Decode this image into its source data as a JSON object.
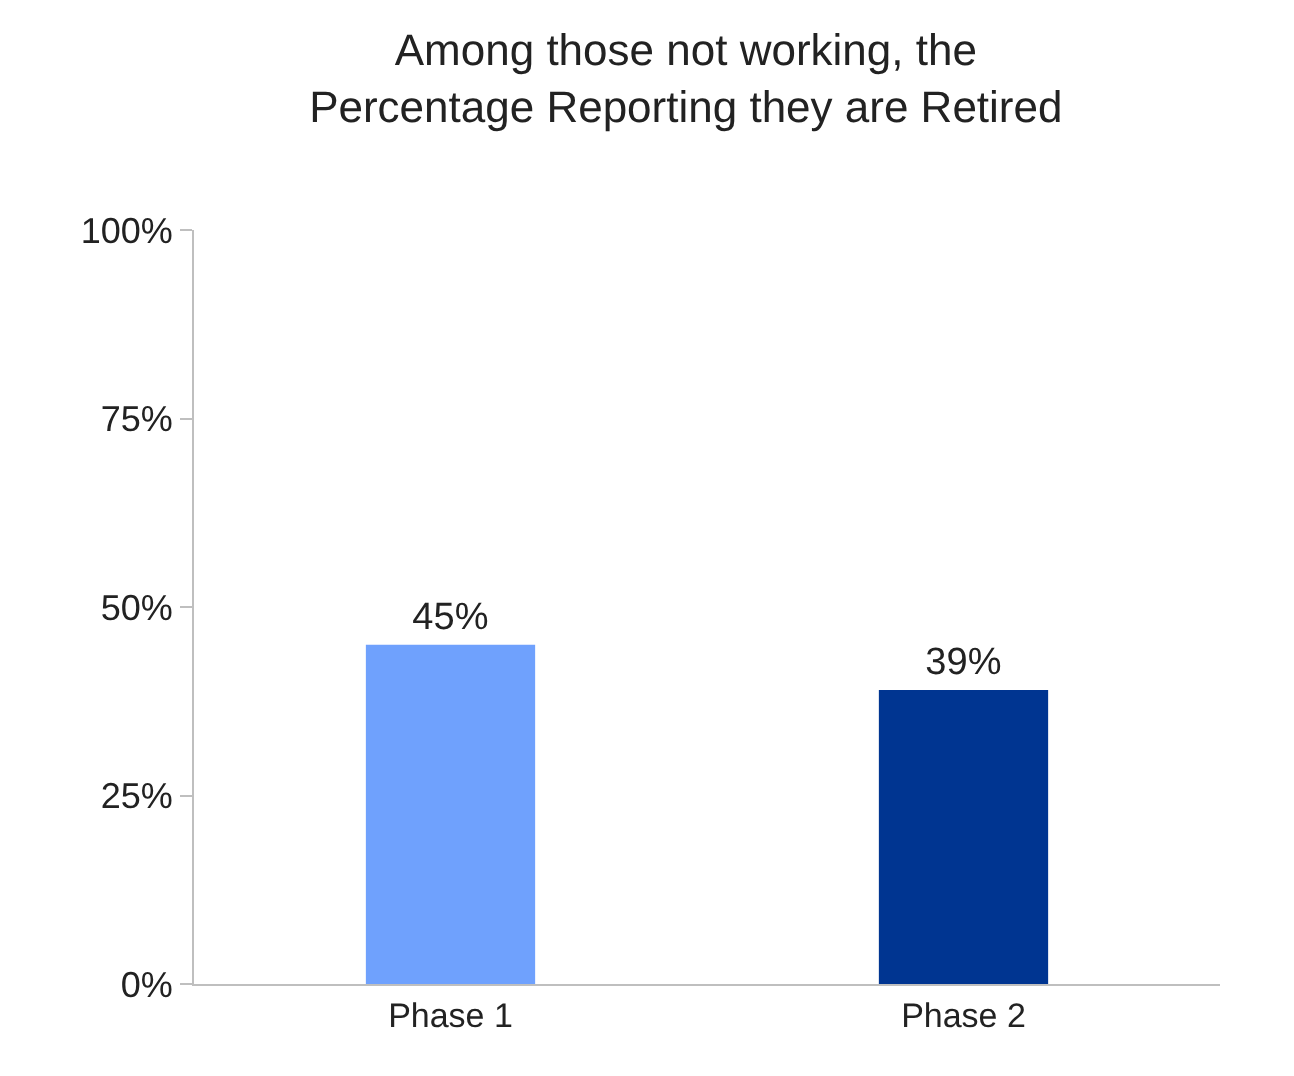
{
  "chart_data": {
    "type": "bar",
    "title": "Among those not working, the\nPercentage Reporting they are Retired",
    "categories": [
      "Phase 1",
      "Phase 2"
    ],
    "values": [
      45,
      39
    ],
    "colors": [
      "#6fa1fd",
      "#003591"
    ],
    "value_labels": [
      "45%",
      "39%"
    ],
    "ylim": [
      0,
      100
    ],
    "yticks": [
      {
        "value": 0,
        "label": "0%"
      },
      {
        "value": 25,
        "label": "25%"
      },
      {
        "value": 50,
        "label": "50%"
      },
      {
        "value": 75,
        "label": "75%"
      },
      {
        "value": 100,
        "label": "100%"
      }
    ],
    "grid": false
  }
}
